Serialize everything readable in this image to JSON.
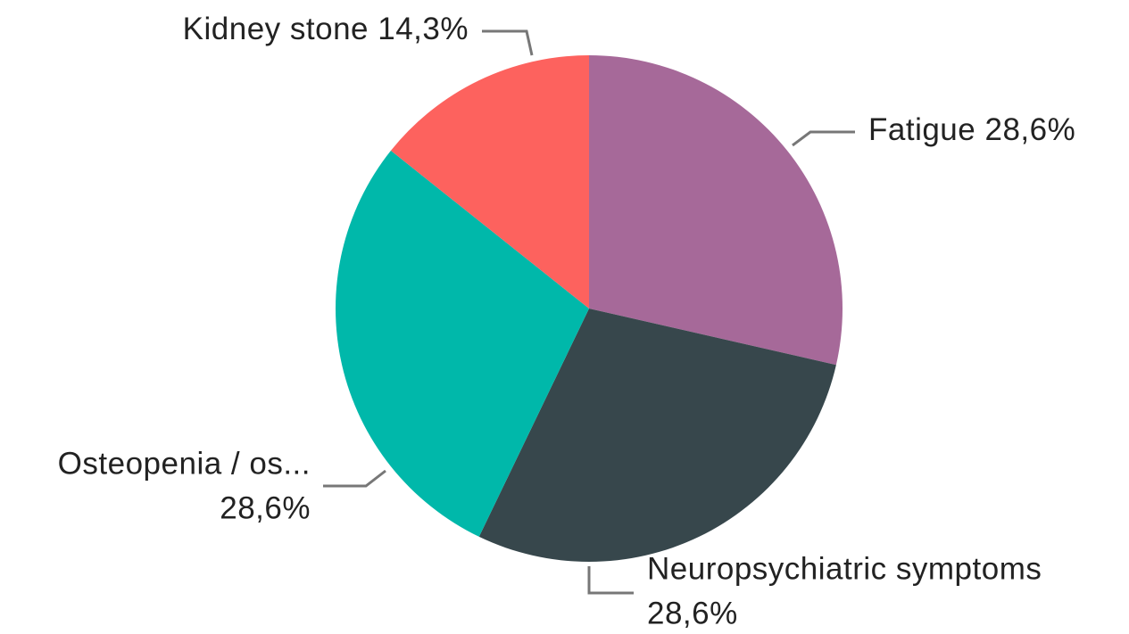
{
  "chart_data": {
    "type": "pie",
    "categories": [
      "Fatigue",
      "Neuropsychiatric symptoms",
      "Osteopenia / os...",
      "Kidney stone"
    ],
    "values": [
      28.6,
      28.6,
      28.6,
      14.3
    ],
    "value_labels": [
      "28,6%",
      "28,6%",
      "28,6%",
      "14,3%"
    ],
    "colors": [
      "#a66999",
      "#37474c",
      "#00b8aa",
      "#fd625e"
    ]
  }
}
